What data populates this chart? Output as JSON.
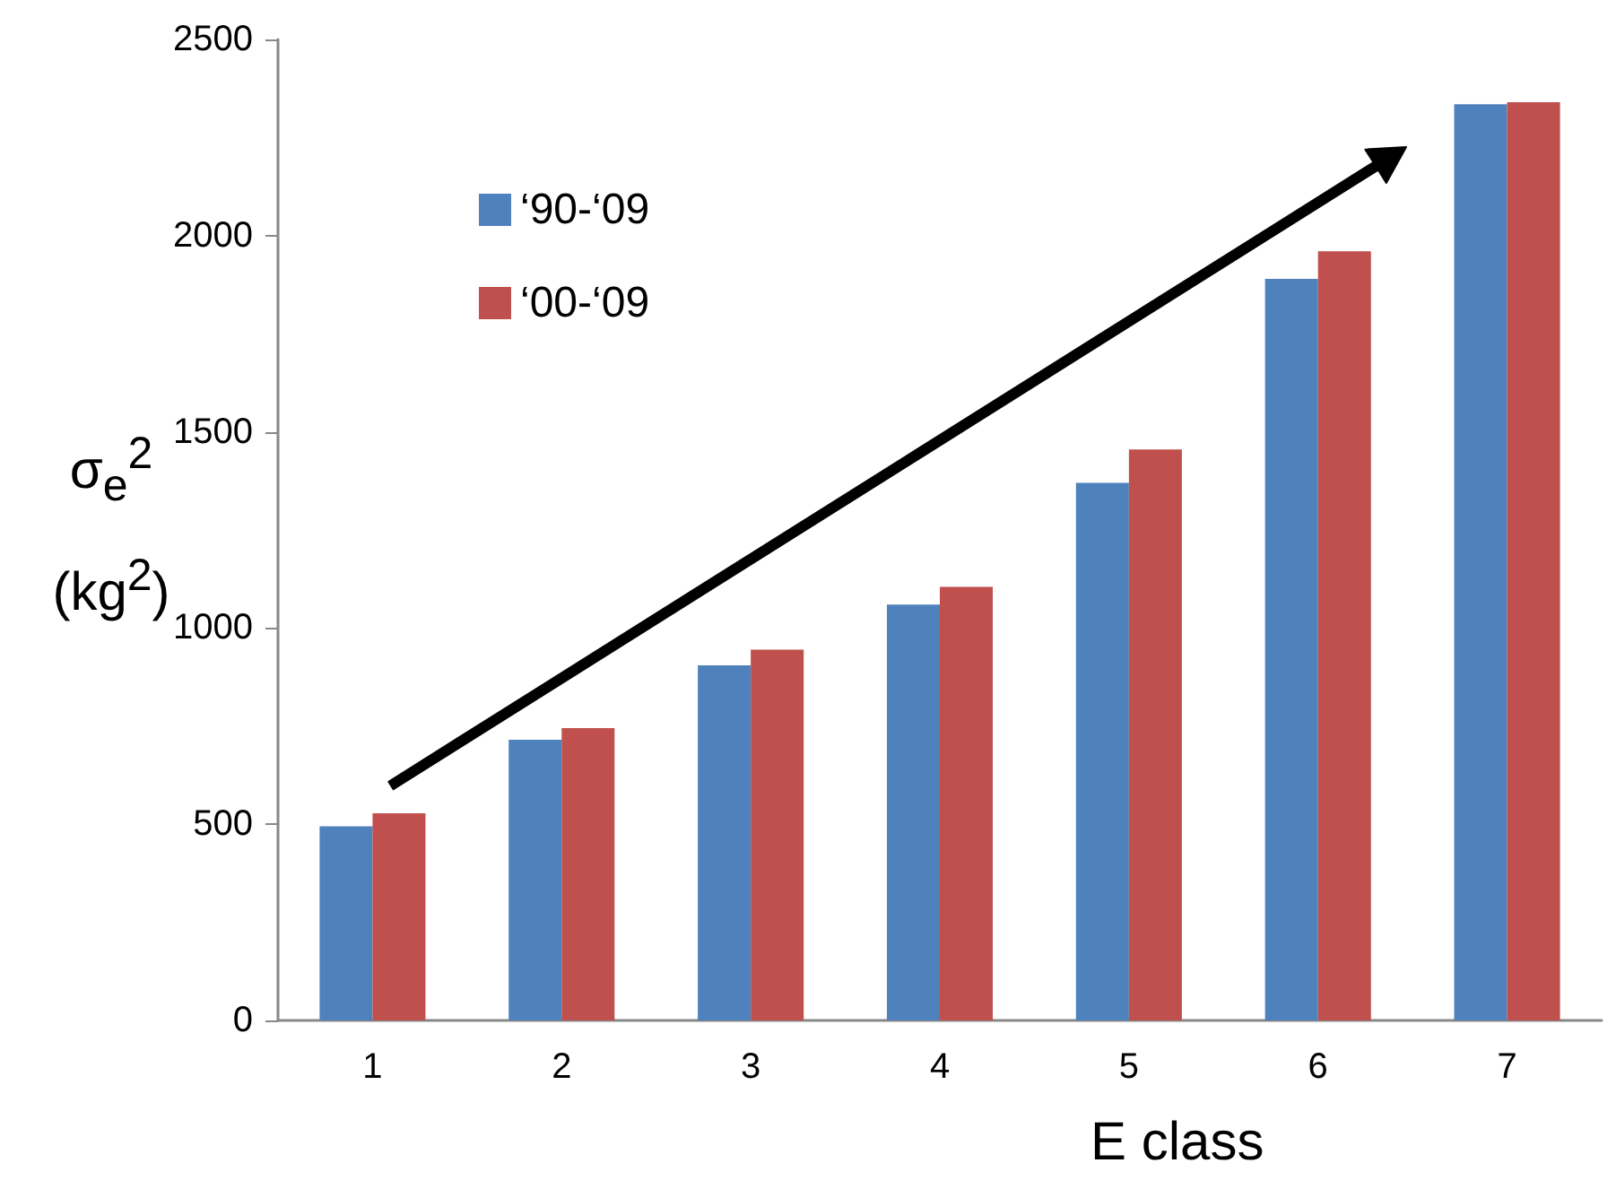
{
  "chart_data": {
    "type": "bar",
    "xlabel": "E class",
    "ylabel": "σ$_{e}$$^{2}$ (kg$^{2}$)",
    "categories": [
      "1",
      "2",
      "3",
      "4",
      "5",
      "6",
      "7"
    ],
    "series": [
      {
        "name": "‘90-‘09",
        "color": "#4f81bd",
        "values": [
          495,
          715,
          905,
          1060,
          1370,
          1890,
          2335
        ]
      },
      {
        "name": "‘00-‘09",
        "color": "#c0504d",
        "values": [
          528,
          745,
          945,
          1105,
          1455,
          1960,
          2340
        ]
      }
    ],
    "ylim": [
      0,
      2500
    ],
    "yticks": [
      0,
      500,
      1000,
      1500,
      2000,
      2500
    ],
    "grid": false,
    "legend": "top left"
  }
}
